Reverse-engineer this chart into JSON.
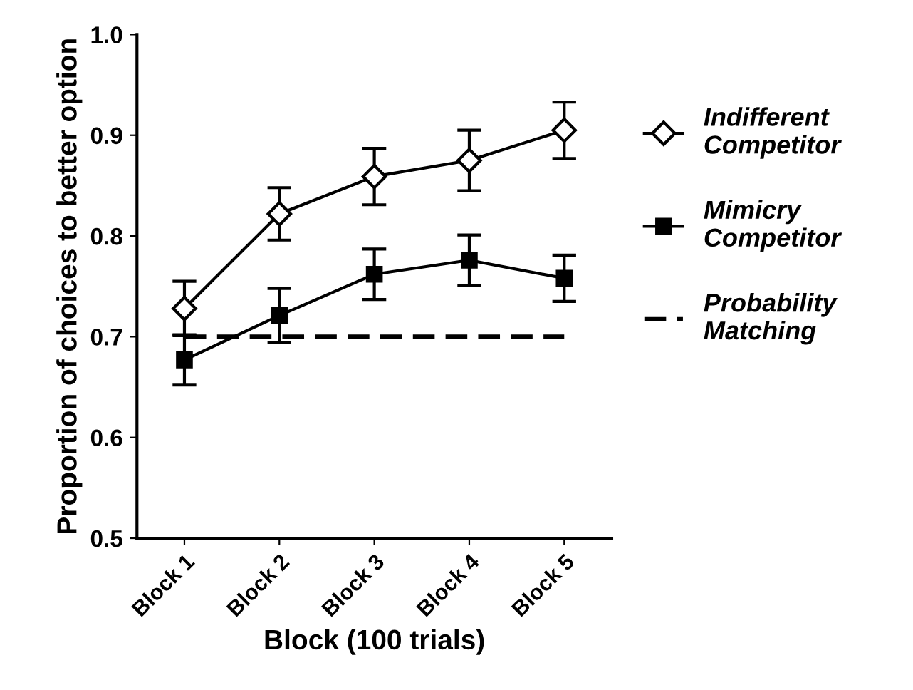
{
  "chart_data": {
    "type": "line",
    "xlabel": "Block (100 trials)",
    "ylabel": "Proportion of choices to better option",
    "categories": [
      "Block 1",
      "Block 2",
      "Block 3",
      "Block 4",
      "Block 5"
    ],
    "ylim": [
      0.5,
      1.0
    ],
    "yticks": [
      0.5,
      0.6,
      0.7,
      0.8,
      0.9,
      {
        "value": 1,
        "label": "1.0"
      }
    ],
    "grid": false,
    "legend": "right",
    "series": [
      {
        "name": "Indifferent Competitor",
        "color": "#000000",
        "marker": "diamond",
        "values": [
          0.728,
          0.822,
          0.859,
          0.875,
          0.905
        ],
        "errors": [
          0.027,
          0.026,
          0.028,
          0.03,
          0.028
        ]
      },
      {
        "name": "Mimicry Competitor",
        "color": "#000000",
        "marker": "square",
        "values": [
          0.677,
          0.721,
          0.762,
          0.776,
          0.758
        ],
        "errors": [
          0.025,
          0.027,
          0.025,
          0.025,
          0.023
        ]
      },
      {
        "name": "Probability Matching",
        "color": "#000000",
        "marker": "none",
        "line_style": "dashed",
        "values": [
          0.7,
          0.7,
          0.7,
          0.7,
          0.7
        ]
      }
    ]
  }
}
